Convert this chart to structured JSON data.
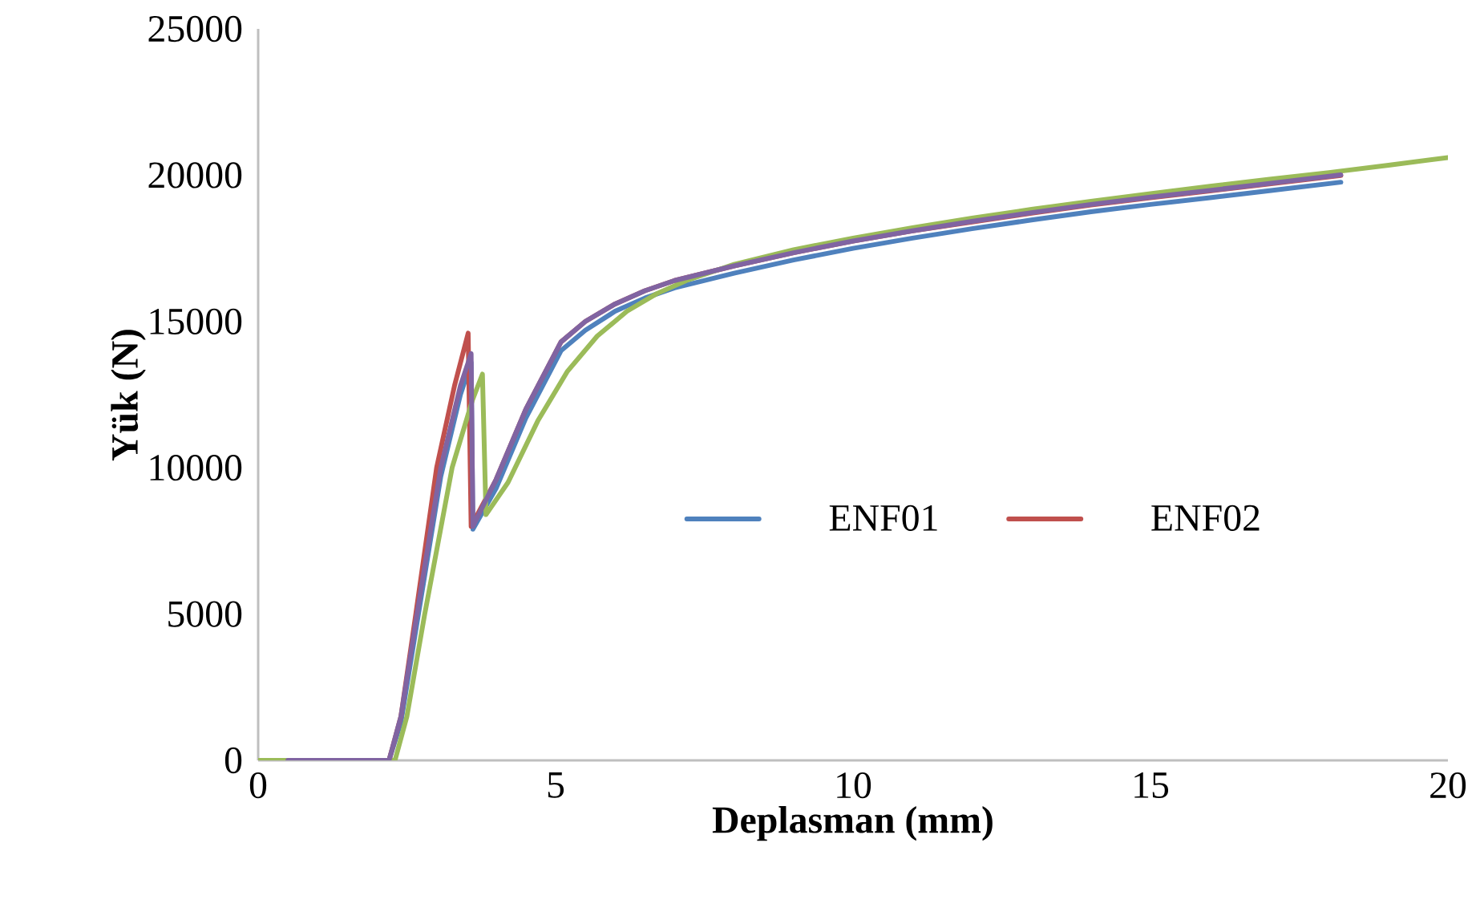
{
  "chart_data": {
    "type": "line",
    "xlabel": "Deplasman (mm)",
    "ylabel": "Yük (N)",
    "xlim": [
      0,
      20
    ],
    "xticks": [
      0,
      5,
      10,
      15,
      20
    ],
    "ylim": [
      0,
      25000
    ],
    "yticks": [
      0,
      5000,
      10000,
      15000,
      20000,
      25000
    ],
    "grid": false,
    "legend": "right",
    "marker": "none",
    "line_style": "solid",
    "series": [
      {
        "name": "ENF01",
        "color": "#4f81bd",
        "x": [
          0.5,
          2.2,
          2.4,
          2.67,
          3.07,
          3.4,
          3.58,
          3.61,
          4.0,
          4.5,
          5.09,
          5.5,
          6.0,
          6.5,
          7.0,
          8,
          9,
          10,
          11,
          12,
          13,
          14,
          15,
          16,
          17,
          18.2
        ],
        "values": [
          0,
          0,
          1300,
          4700,
          9700,
          12500,
          13600,
          7900,
          9300,
          11700,
          14000,
          14700,
          15350,
          15800,
          16150,
          16650,
          17100,
          17500,
          17850,
          18170,
          18470,
          18750,
          19000,
          19230,
          19470,
          19760
        ]
      },
      {
        "name": "ENF02",
        "color": "#c0504d",
        "x": [
          0.5,
          2.2,
          2.4,
          2.65,
          3.0,
          3.3,
          3.53,
          3.58,
          4.0,
          4.5,
          5.09,
          5.5,
          6.0,
          6.5,
          7.0,
          8,
          9,
          10,
          11,
          12,
          13,
          14,
          15,
          16,
          17,
          18.2
        ],
        "values": [
          0,
          0,
          1500,
          5000,
          10000,
          12800,
          14600,
          8000,
          9600,
          12000,
          14300,
          15000,
          15600,
          16050,
          16400,
          16900,
          17350,
          17750,
          18100,
          18400,
          18700,
          18980,
          19230,
          19460,
          19700,
          19990
        ]
      },
      {
        "color": "#9bbb59",
        "x": [
          0,
          2.3,
          2.5,
          2.8,
          3.26,
          3.6,
          3.77,
          3.83,
          4.2,
          4.7,
          5.2,
          5.7,
          6.2,
          6.7,
          7.2,
          8,
          9,
          10,
          11,
          12,
          13,
          14,
          15,
          16,
          17,
          18,
          19,
          20
        ],
        "values": [
          0,
          0,
          1500,
          5000,
          10000,
          12300,
          13200,
          8400,
          9500,
          11600,
          13300,
          14500,
          15350,
          15950,
          16400,
          16950,
          17450,
          17850,
          18200,
          18530,
          18830,
          19110,
          19370,
          19620,
          19860,
          20090,
          20340,
          20600
        ]
      },
      {
        "color": "#8064a2",
        "x": [
          0.5,
          2.2,
          2.4,
          2.67,
          3.07,
          3.4,
          3.58,
          3.61,
          4.0,
          4.5,
          5.09,
          5.5,
          6.0,
          6.5,
          7.0,
          8,
          9,
          10,
          11,
          12,
          13,
          14,
          15,
          16,
          17,
          18.2
        ],
        "values": [
          0,
          0,
          1500,
          5000,
          10000,
          12800,
          13900,
          8000,
          9600,
          12000,
          14300,
          15000,
          15600,
          16050,
          16400,
          16900,
          17350,
          17750,
          18100,
          18420,
          18720,
          19000,
          19250,
          19480,
          19720,
          20010
        ]
      }
    ]
  }
}
